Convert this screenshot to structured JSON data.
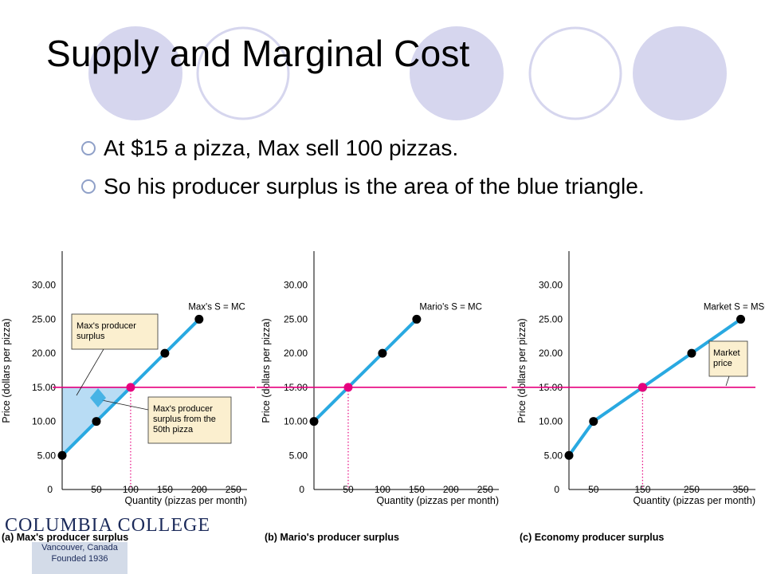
{
  "title": "Supply and Marginal Cost",
  "bullets": [
    "At $15 a pizza, Max sell 100 pizzas.",
    "So his producer surplus is the area of the blue triangle."
  ],
  "colors": {
    "supply": "#29a9e1",
    "price": "#e6007e",
    "surplus": "#b8dcf4",
    "callout": "#fbefcf",
    "deco": "#d6d6ee"
  },
  "chart_data": [
    {
      "type": "line",
      "caption": "(a) Max's producer surplus",
      "xlabel": "Quantity (pizzas per month)",
      "ylabel": "Price (dollars per pizza)",
      "xticks": [
        0,
        50,
        100,
        150,
        200,
        250
      ],
      "xticks_text": [
        "0",
        "50",
        "100",
        "150",
        "200",
        "250"
      ],
      "yticks": [
        5,
        10,
        15,
        20,
        25,
        30
      ],
      "yticks_text": [
        "5.00",
        "10.00",
        "15.00",
        "20.00",
        "25.00",
        "30.00"
      ],
      "xlim": [
        0,
        270
      ],
      "ylim": [
        0,
        35
      ],
      "series": [
        {
          "name": "Max's S = MC",
          "x": [
            0,
            50,
            150,
            200
          ],
          "y": [
            5,
            10,
            20,
            25
          ]
        }
      ],
      "price": 15,
      "equilibrium": {
        "x": 100,
        "y": 15
      },
      "surplus": true,
      "callouts": [
        "Max's producer surplus",
        "Max's producer surplus from the 50th pizza"
      ]
    },
    {
      "type": "line",
      "caption": "(b) Mario's producer surplus",
      "xlabel": "Quantity (pizzas per month)",
      "ylabel": "Price (dollars per pizza)",
      "xticks": [
        0,
        50,
        100,
        150,
        200,
        250
      ],
      "xticks_text": [
        "0",
        "50",
        "100",
        "150",
        "200",
        "250"
      ],
      "yticks": [
        5,
        10,
        15,
        20,
        25,
        30
      ],
      "yticks_text": [
        "5.00",
        "10.00",
        "15.00",
        "20.00",
        "25.00",
        "30.00"
      ],
      "xlim": [
        0,
        270
      ],
      "ylim": [
        0,
        35
      ],
      "series": [
        {
          "name": "Mario's S = MC",
          "x": [
            0,
            100,
            150
          ],
          "y": [
            10,
            20,
            25
          ]
        }
      ],
      "price": 15,
      "equilibrium": {
        "x": 50,
        "y": 15
      },
      "surplus": false,
      "callouts": []
    },
    {
      "type": "line",
      "caption": "(c) Economy producer surplus",
      "xlabel": "Quantity (pizzas per month)",
      "ylabel": "Price (dollars per pizza)",
      "xticks": [
        0,
        50,
        150,
        250,
        350
      ],
      "xticks_text": [
        "0",
        "50",
        "150",
        "250",
        "350"
      ],
      "yticks": [
        5,
        10,
        15,
        20,
        25,
        30
      ],
      "yticks_text": [
        "5.00",
        "10.00",
        "15.00",
        "20.00",
        "25.00",
        "30.00"
      ],
      "xlim": [
        0,
        380
      ],
      "ylim": [
        0,
        35
      ],
      "series": [
        {
          "name": "Market S = MSC",
          "x": [
            0,
            50,
            150,
            250,
            350
          ],
          "y": [
            5,
            10,
            15,
            20,
            25
          ]
        }
      ],
      "price": 15,
      "equilibrium": {
        "x": 150,
        "y": 15
      },
      "surplus": false,
      "callouts": [
        "Market price"
      ]
    }
  ],
  "logo": {
    "name": "COLUMBIA COLLEGE",
    "place": "Vancouver, Canada",
    "founded": "Founded 1936"
  }
}
